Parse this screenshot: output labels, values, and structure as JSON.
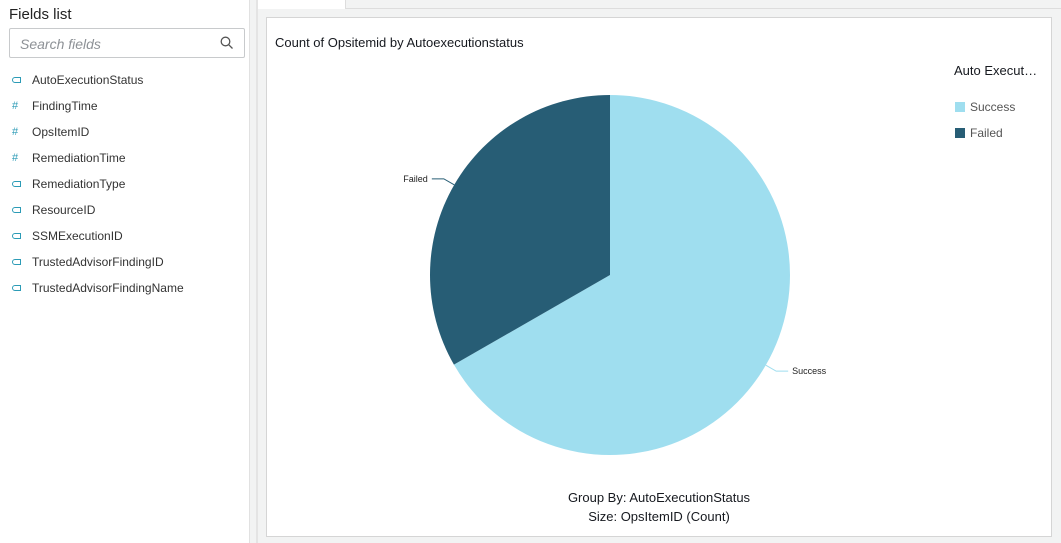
{
  "fields_panel": {
    "title": "Fields list",
    "search_placeholder": "Search fields",
    "fields": [
      {
        "name": "AutoExecutionStatus",
        "type": "dimension"
      },
      {
        "name": "FindingTime",
        "type": "measure"
      },
      {
        "name": "OpsItemID",
        "type": "measure"
      },
      {
        "name": "RemediationTime",
        "type": "measure"
      },
      {
        "name": "RemediationType",
        "type": "dimension"
      },
      {
        "name": "ResourceID",
        "type": "dimension"
      },
      {
        "name": "SSMExecutionID",
        "type": "dimension"
      },
      {
        "name": "TrustedAdvisorFindingID",
        "type": "dimension"
      },
      {
        "name": "TrustedAdvisorFindingName",
        "type": "dimension"
      }
    ]
  },
  "chart_data": {
    "type": "pie",
    "title": "Count of Opsitemid by Autoexecutionstatus",
    "legend_title": "Auto Execut…",
    "legend_position": "top-right",
    "slices": [
      {
        "label": "Success",
        "share_percent": 66.7,
        "color": "#9fdeef"
      },
      {
        "label": "Failed",
        "share_percent": 33.3,
        "color": "#275d75"
      }
    ],
    "group_by": "Group By: AutoExecutionStatus",
    "size": "Size: OpsItemID (Count)"
  }
}
